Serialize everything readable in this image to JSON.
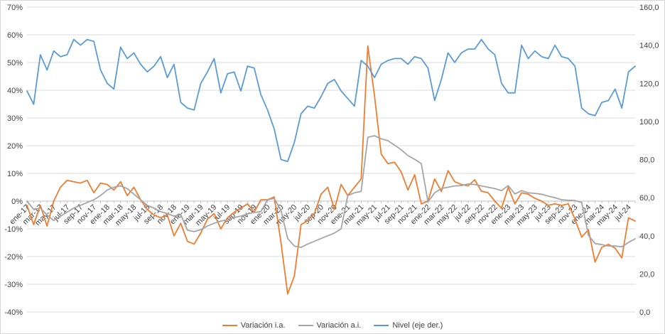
{
  "figure": {
    "background": "#ffffff",
    "border_color": "#d7d7d7",
    "gridline_color": "#d9d9d9",
    "axis_line_color": "#bfbfbf",
    "label_color": "#404040"
  },
  "chart_data": {
    "type": "line",
    "title": "",
    "grid": true,
    "legend_position": "bottom",
    "x_frequency": "monthly",
    "x_range": "ene-17 to ago-24",
    "x_tick_labels": [
      "ene-17",
      "mar-17",
      "may-17",
      "jul-17",
      "sep-17",
      "nov-17",
      "ene-18",
      "mar-18",
      "may-18",
      "jul-18",
      "sep-18",
      "nov-18",
      "ene-19",
      "mar-19",
      "may-19",
      "jul-19",
      "sep-19",
      "nov-19",
      "ene-20",
      "mar-20",
      "may-20",
      "jul-20",
      "sep-20",
      "nov-20",
      "ene-21",
      "mar-21",
      "may-21",
      "jul-21",
      "sep-21",
      "nov-21",
      "ene-22",
      "mar-22",
      "may-22",
      "jul-22",
      "sep-22",
      "nov-22",
      "ene-23",
      "mar-23",
      "may-23",
      "jul-23",
      "sep-23",
      "nov-23",
      "ene-24",
      "mar-24",
      "may-24",
      "jul-24"
    ],
    "left_axis": {
      "min": -40,
      "max": 70,
      "step": 10,
      "format": "percent",
      "tick_labels": [
        "70%",
        "60%",
        "50%",
        "40%",
        "30%",
        "20%",
        "10%",
        "0%",
        "-10%",
        "-20%",
        "-30%",
        "-40%"
      ]
    },
    "right_axis": {
      "min": 0,
      "max": 160,
      "step": 20,
      "tick_labels": [
        "160,0",
        "140,0",
        "120,0",
        "100,0",
        "80,0",
        "60,0",
        "40,0",
        "20,0",
        "0,0"
      ]
    },
    "series": [
      {
        "name": "Variación i.a.",
        "axis": "left",
        "color": "#ED7D31",
        "values": [
          -1.5,
          -8.5,
          -1.5,
          -9,
          0,
          5,
          7.5,
          7,
          6.5,
          7.5,
          3,
          6.5,
          6,
          4,
          7,
          2,
          5,
          0.5,
          -3,
          -5,
          -6,
          -5,
          -12.5,
          -8,
          -14.5,
          -15.5,
          -11.5,
          -6.5,
          -4.5,
          -10,
          -6,
          -4,
          -2.5,
          -1,
          -4,
          0.5,
          0.5,
          1.5,
          -15,
          -33.5,
          -27,
          -8.5,
          -7,
          -4.5,
          2.5,
          5,
          -3,
          6,
          2,
          5,
          8,
          56,
          38,
          17,
          13.5,
          14,
          10.5,
          4,
          9.5,
          -1,
          0,
          8,
          3.5,
          11,
          7,
          6,
          5.5,
          7.7,
          3.6,
          3,
          0,
          -2.6,
          5,
          -1,
          3,
          2.5,
          1,
          0,
          -1.5,
          -1,
          -1.5,
          -1,
          -6.5,
          -13,
          -10.3,
          -22,
          -16.7,
          -15.6,
          -17,
          -20.5,
          -6,
          -7.2
        ]
      },
      {
        "name": "Variación a.i.",
        "axis": "left",
        "color": "#A5A5A5",
        "values": [
          0,
          -3,
          -2.5,
          -5,
          -7,
          -5.5,
          -4,
          -2.5,
          -1.5,
          -0.5,
          0.5,
          2,
          4,
          5,
          5.5,
          4.5,
          2.5,
          0.5,
          -1.5,
          -2.5,
          -3.8,
          -4.5,
          -5.4,
          -4.8,
          -10.5,
          -11,
          -10.3,
          -9,
          -8,
          -7.2,
          -6.7,
          -5.9,
          -5.4,
          -4.6,
          -4.1,
          -3.8,
          0.5,
          1,
          -3.3,
          -13.5,
          -16.2,
          -16.7,
          -15.5,
          -14.5,
          -13.5,
          -12.5,
          -11.5,
          -10,
          2,
          3,
          3.5,
          23,
          23.6,
          22.5,
          21.8,
          20.2,
          18.5,
          16.4,
          15.1,
          13.5,
          -0.3,
          3,
          4.5,
          5,
          5.5,
          5.6,
          6.2,
          6,
          5.5,
          5,
          4.5,
          3.8,
          5.6,
          2.6,
          3.8,
          3,
          2.8,
          2.5,
          1.8,
          1.2,
          0.5,
          0.3,
          0.2,
          -0.5,
          -12.3,
          -15.3,
          -15.7,
          -16.2,
          -16.2,
          -16.5,
          -14.9,
          -13.6
        ]
      },
      {
        "name": "Nivel (eje der.)",
        "axis": "right",
        "color": "#5B9BD5",
        "values": [
          116,
          109,
          135,
          127,
          137,
          134,
          135,
          143,
          140,
          143,
          142,
          127,
          120,
          117,
          139,
          133,
          136,
          130,
          126,
          129,
          134,
          123,
          130,
          110,
          107,
          106,
          120,
          126,
          133,
          115,
          125,
          126,
          116,
          129,
          128,
          114,
          106,
          96,
          80,
          79,
          89,
          104,
          108,
          107,
          113,
          120,
          122,
          116,
          112,
          108,
          132,
          129,
          123,
          130,
          132,
          133,
          133,
          130,
          134,
          133,
          128,
          111,
          122,
          136,
          131,
          136,
          138,
          138,
          143,
          138,
          135,
          120,
          115,
          115,
          140,
          133,
          137,
          134,
          133,
          140,
          134,
          133,
          129,
          107,
          104,
          103,
          110,
          111,
          117,
          107,
          126,
          129
        ]
      }
    ]
  },
  "legend": {
    "item1": "Variación i.a.",
    "item2": "Variación a.i.",
    "item3": "Nivel (eje der.)"
  }
}
